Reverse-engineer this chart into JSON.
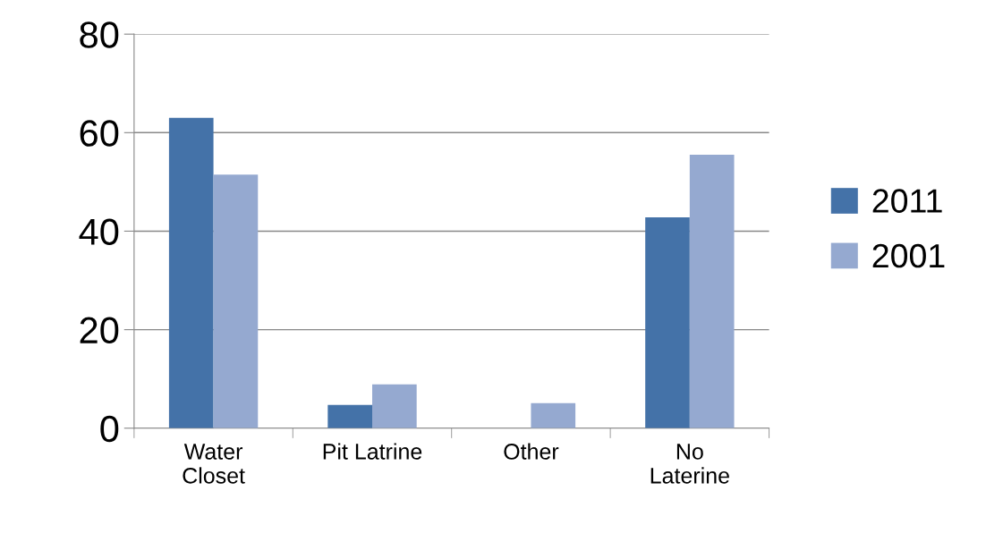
{
  "chart_data": {
    "type": "bar",
    "categories": [
      "Water\nCloset",
      "Pit Latrine",
      "Other",
      "No\nLaterine"
    ],
    "series": [
      {
        "name": "2011",
        "color": "#4472a8",
        "values": [
          63,
          4.7,
          0,
          42.8
        ]
      },
      {
        "name": "2001",
        "color": "#95a9d0",
        "values": [
          51.5,
          8.9,
          5.1,
          55.5
        ]
      }
    ],
    "ylim": [
      0,
      80
    ],
    "yticks": [
      0,
      20,
      40,
      60,
      80
    ],
    "grid": "y",
    "legend": "right"
  }
}
